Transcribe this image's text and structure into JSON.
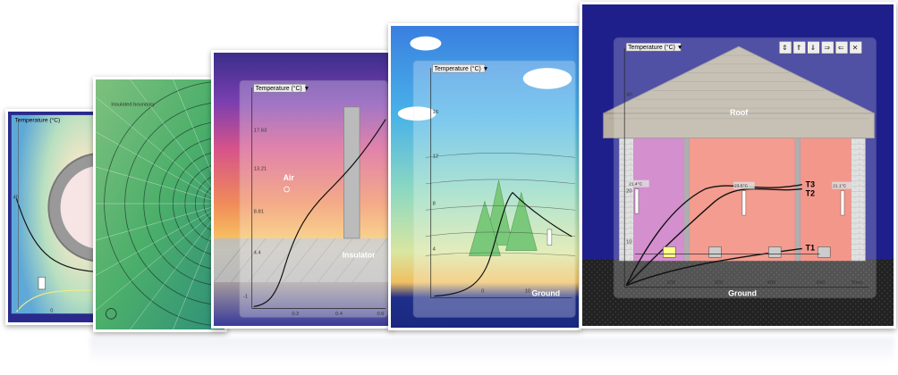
{
  "card1": {
    "selector": "Temperature (°C)",
    "ticks_y": [
      "40"
    ],
    "ticks_x": [
      "0"
    ]
  },
  "card2": {
    "label": "Insulated boundary"
  },
  "card3": {
    "selector": "Temperature (°C) ▼",
    "ticks_y": [
      "17.63",
      "13.21",
      "8.81",
      "4.4",
      "-1"
    ],
    "ticks_x": [
      "0.2",
      "0.4",
      "0.6"
    ],
    "air_label": "Air",
    "insulator_label": "Insulator"
  },
  "card4": {
    "selector": "Temperature (°C) ▼",
    "ticks_y": [
      "16",
      "12",
      "8",
      "4"
    ],
    "ticks_x": [
      "0",
      "10"
    ],
    "ground_label": "Ground"
  },
  "card5": {
    "selector": "Temperature (°C) ▼",
    "toolbar": [
      "⇕",
      "⇑",
      "⇓",
      "⇒",
      "⇐",
      "✕"
    ],
    "ticks_y": [
      "40",
      "20",
      "10"
    ],
    "ticks_x": [
      "160",
      "320",
      "480",
      "640"
    ],
    "x_axis_label": "Time",
    "roof_label": "Roof",
    "ground_label": "Ground",
    "curve_labels": [
      "T3",
      "T2",
      "T1"
    ],
    "sensor_readouts": [
      "21.4°C",
      "23.5°C",
      "21.1°C"
    ]
  }
}
